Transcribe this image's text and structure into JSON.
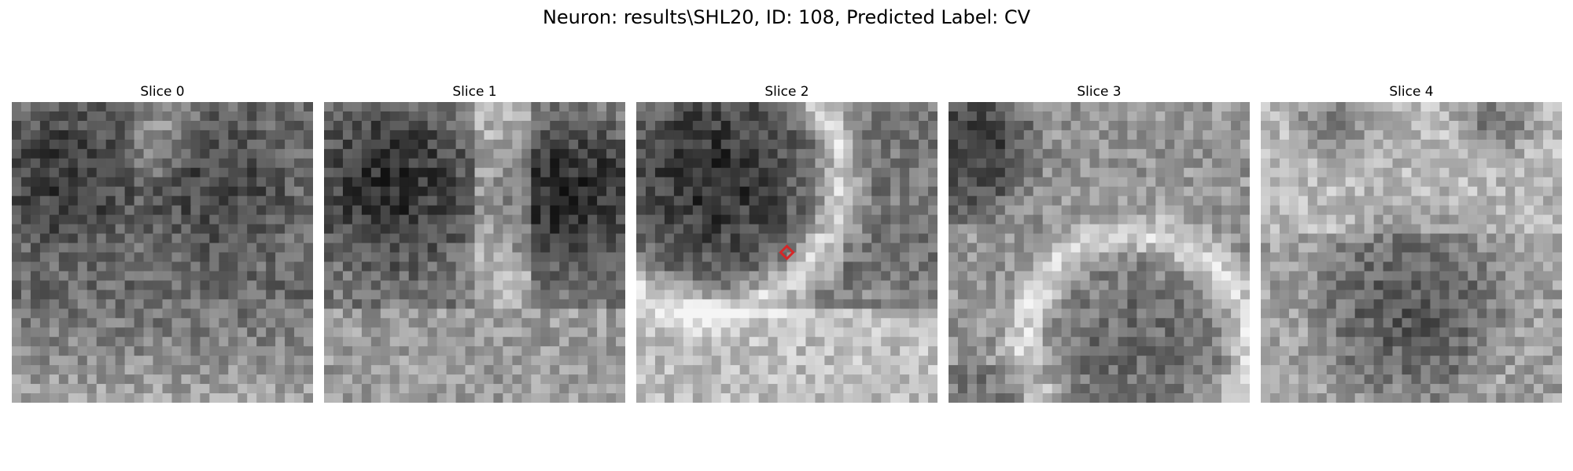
{
  "figure": {
    "title": "Neuron: results\\SHL20, ID: 108, Predicted Label: CV"
  },
  "panels": [
    {
      "title": "Slice 0",
      "image": "grayscale EM patch: dark granular upper half with dark blobs at top-left and center-right, brighter mottled band near bottom"
    },
    {
      "title": "Slice 1",
      "image": "grayscale EM patch: two large dark round regions (left and right) separated by a bright vertical membrane, bright textured bottom"
    },
    {
      "title": "Slice 2",
      "image": "grayscale EM patch: large dark round cell at upper-left bordered by a bright curved membrane, bright lower region; red diamond marker at the center"
    },
    {
      "title": "Slice 3",
      "image": "grayscale EM patch: dark region at top-left, bright curved membrane crossing the middle, medium-dark round cell at lower-right"
    },
    {
      "title": "Slice 4",
      "image": "grayscale EM patch: bright upper region with dark blobs near the top, large medium-dark round cell in lower middle"
    }
  ],
  "marker": {
    "panel_index": 2,
    "shape": "diamond",
    "color": "#d62728"
  },
  "colors": {
    "background": "#ffffff",
    "marker": "#d62728"
  }
}
